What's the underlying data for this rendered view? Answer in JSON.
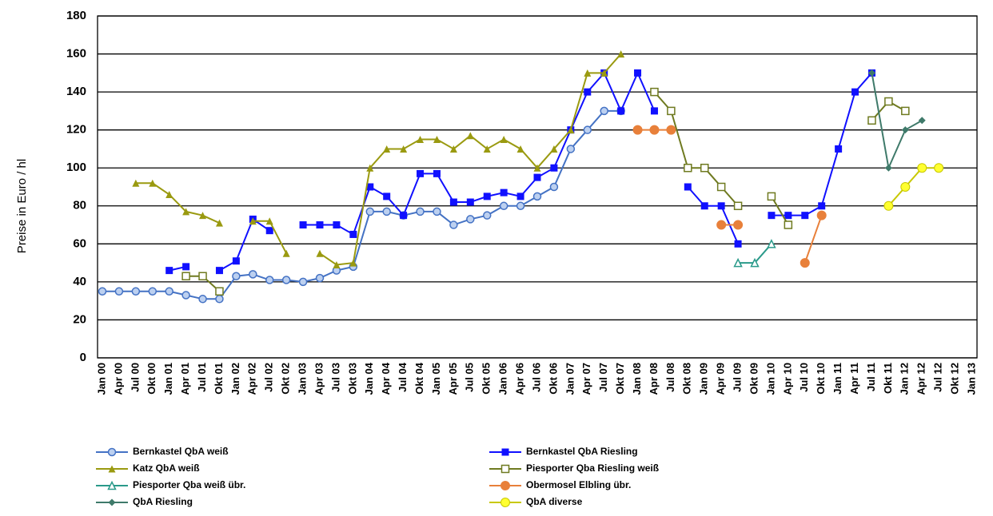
{
  "chart_data": {
    "type": "line",
    "y_label": "Preise in Euro / hl",
    "categories": [
      "Jan 00",
      "Apr 00",
      "Jul 00",
      "Okt 00",
      "Jan 01",
      "Apr 01",
      "Jul 01",
      "Okt 01",
      "Jan 02",
      "Apr 02",
      "Jul 02",
      "Okt 02",
      "Jan 03",
      "Apr 03",
      "Jul 03",
      "Okt 03",
      "Jan 04",
      "Apr 04",
      "Jul 04",
      "Okt 04",
      "Jan 05",
      "Apr 05",
      "Jul 05",
      "Okt 05",
      "Jan 06",
      "Apr 06",
      "Jul 06",
      "Okt 06",
      "Jan 07",
      "Apr 07",
      "Jul 07",
      "Okt 07",
      "Jan 08",
      "Apr 08",
      "Jul 08",
      "Okt 08",
      "Jan 09",
      "Apr 09",
      "Jul 09",
      "Okt 09",
      "Jan 10",
      "Apr 10",
      "Jul 10",
      "Okt 10",
      "Jan 11",
      "Apr 11",
      "Jul 11",
      "Okt 11",
      "Jan 12",
      "Apr 12",
      "Jul 12",
      "Okt 12",
      "Jan 13"
    ],
    "ylim": [
      0,
      180
    ],
    "yticks": [
      0,
      20,
      40,
      60,
      80,
      100,
      120,
      140,
      160,
      180
    ],
    "grid": true,
    "series": [
      {
        "name": "Bernkastel QbA weiß",
        "color": "#4472c4",
        "marker": "circle",
        "values": [
          35,
          35,
          35,
          35,
          35,
          33,
          31,
          31,
          43,
          44,
          41,
          41,
          40,
          42,
          46,
          48,
          77,
          77,
          75,
          77,
          77,
          70,
          73,
          75,
          80,
          80,
          85,
          90,
          110,
          120,
          130,
          130,
          null,
          null,
          null,
          null,
          null,
          null,
          null,
          null,
          null,
          null,
          null,
          null,
          null,
          null,
          null,
          null,
          null,
          null,
          null,
          null,
          null
        ]
      },
      {
        "name": "Bernkastel QbA Riesling",
        "color": "#1010ff",
        "marker": "square",
        "values": [
          null,
          null,
          null,
          null,
          46,
          48,
          null,
          46,
          51,
          73,
          67,
          null,
          70,
          70,
          70,
          65,
          90,
          85,
          75,
          97,
          97,
          82,
          82,
          85,
          87,
          85,
          95,
          100,
          120,
          140,
          150,
          130,
          150,
          130,
          null,
          90,
          80,
          80,
          60,
          null,
          75,
          75,
          75,
          80,
          110,
          140,
          150,
          null,
          null,
          null,
          null,
          null,
          null
        ]
      },
      {
        "name": "Katz QbA weiß",
        "color": "#9a9a10",
        "marker": "triangle",
        "values": [
          null,
          null,
          92,
          92,
          86,
          77,
          75,
          71,
          null,
          72,
          72,
          55,
          null,
          55,
          49,
          50,
          100,
          110,
          110,
          115,
          115,
          110,
          117,
          110,
          115,
          110,
          100,
          110,
          120,
          150,
          150,
          160,
          null,
          null,
          null,
          null,
          null,
          null,
          null,
          null,
          null,
          null,
          null,
          null,
          null,
          null,
          null,
          null,
          null,
          null,
          null,
          null,
          null
        ]
      },
      {
        "name": "Piesporter Qba Riesling weiß",
        "color": "#6f7a20",
        "marker": "open-square",
        "values": [
          null,
          null,
          null,
          null,
          null,
          43,
          43,
          35,
          null,
          null,
          null,
          null,
          null,
          null,
          null,
          null,
          null,
          null,
          null,
          null,
          null,
          null,
          null,
          null,
          null,
          null,
          null,
          null,
          null,
          null,
          null,
          null,
          null,
          140,
          130,
          100,
          100,
          90,
          80,
          null,
          85,
          70,
          null,
          null,
          null,
          null,
          125,
          135,
          130,
          null,
          null,
          null,
          null
        ]
      },
      {
        "name": "Piesporter Qba weiß übr.",
        "color": "#2a9a8a",
        "marker": "open-triangle",
        "values": [
          null,
          null,
          null,
          null,
          null,
          null,
          null,
          null,
          null,
          null,
          null,
          null,
          null,
          null,
          null,
          null,
          null,
          null,
          null,
          null,
          null,
          null,
          null,
          null,
          null,
          null,
          null,
          null,
          null,
          null,
          null,
          null,
          null,
          null,
          null,
          null,
          null,
          null,
          50,
          50,
          60,
          null,
          null,
          null,
          null,
          null,
          null,
          null,
          null,
          null,
          null,
          null,
          null
        ]
      },
      {
        "name": "Obermosel Elbling übr.",
        "color": "#e8803a",
        "marker": "circle-filled",
        "values": [
          null,
          null,
          null,
          null,
          null,
          null,
          null,
          null,
          null,
          null,
          null,
          null,
          null,
          null,
          null,
          null,
          null,
          null,
          null,
          null,
          null,
          null,
          null,
          null,
          null,
          null,
          null,
          null,
          null,
          null,
          null,
          null,
          120,
          120,
          120,
          null,
          null,
          70,
          70,
          null,
          null,
          null,
          50,
          75,
          null,
          null,
          null,
          null,
          null,
          null,
          null,
          null,
          null
        ]
      },
      {
        "name": "QbA Riesling",
        "color": "#3f7a6a",
        "marker": "diamond",
        "values": [
          null,
          null,
          null,
          null,
          null,
          null,
          null,
          null,
          null,
          null,
          null,
          null,
          null,
          null,
          null,
          null,
          null,
          null,
          null,
          null,
          null,
          null,
          null,
          null,
          null,
          null,
          null,
          null,
          null,
          null,
          null,
          null,
          null,
          null,
          null,
          null,
          null,
          null,
          null,
          null,
          null,
          null,
          null,
          null,
          null,
          null,
          150,
          100,
          120,
          125,
          null,
          null,
          null
        ]
      },
      {
        "name": "QbA diverse",
        "color": "#c8c800",
        "marker": "yellow-circle",
        "values": [
          null,
          null,
          null,
          null,
          null,
          null,
          null,
          null,
          null,
          null,
          null,
          null,
          null,
          null,
          null,
          null,
          null,
          null,
          null,
          null,
          null,
          null,
          null,
          null,
          null,
          null,
          null,
          null,
          null,
          null,
          null,
          null,
          null,
          null,
          null,
          null,
          null,
          null,
          null,
          null,
          null,
          null,
          null,
          null,
          null,
          null,
          null,
          80,
          90,
          100,
          100,
          null,
          null
        ]
      }
    ]
  }
}
